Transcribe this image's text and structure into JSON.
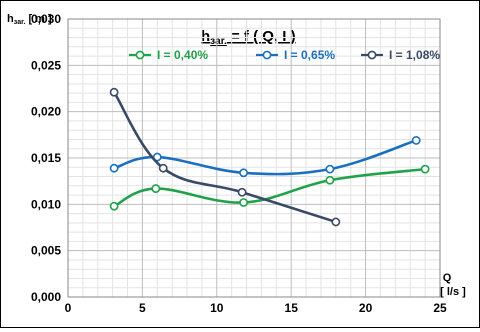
{
  "chart_data": {
    "type": "line",
    "title_main": "h",
    "title_sub": "зar.",
    "title_rest": " = f ( Q, I )",
    "ylabel_main": "h",
    "ylabel_sub": "зar.",
    "ylabel_unit": " [ m ]",
    "xlabel": "Q",
    "xunit": "[ l/s ]",
    "xlim": [
      0,
      25
    ],
    "ylim": [
      0.0,
      0.03
    ],
    "x_ticks": [
      "0",
      "5",
      "10",
      "15",
      "20",
      "25"
    ],
    "y_ticks": [
      "0,000",
      "0,005",
      "0,010",
      "0,015",
      "0,020",
      "0,025",
      "0,030"
    ],
    "grid": true,
    "legend_position": "top-right",
    "series": [
      {
        "name": "I = 0,40%",
        "color": "#1fa24a",
        "points": [
          [
            3.1,
            0.0098
          ],
          [
            5.9,
            0.0117
          ],
          [
            11.8,
            0.0102
          ],
          [
            17.6,
            0.0126
          ],
          [
            24.0,
            0.0138
          ]
        ]
      },
      {
        "name": "I = 0,65%",
        "color": "#1a6fbf",
        "points": [
          [
            3.1,
            0.0139
          ],
          [
            6.0,
            0.0151
          ],
          [
            11.8,
            0.0134
          ],
          [
            17.6,
            0.0138
          ],
          [
            23.4,
            0.0169
          ]
        ]
      },
      {
        "name": "I = 1,08%",
        "color": "#3a4a66",
        "points": [
          [
            3.1,
            0.0221
          ],
          [
            6.4,
            0.0139
          ],
          [
            11.7,
            0.0113
          ],
          [
            18.0,
            0.0081
          ]
        ]
      }
    ]
  }
}
